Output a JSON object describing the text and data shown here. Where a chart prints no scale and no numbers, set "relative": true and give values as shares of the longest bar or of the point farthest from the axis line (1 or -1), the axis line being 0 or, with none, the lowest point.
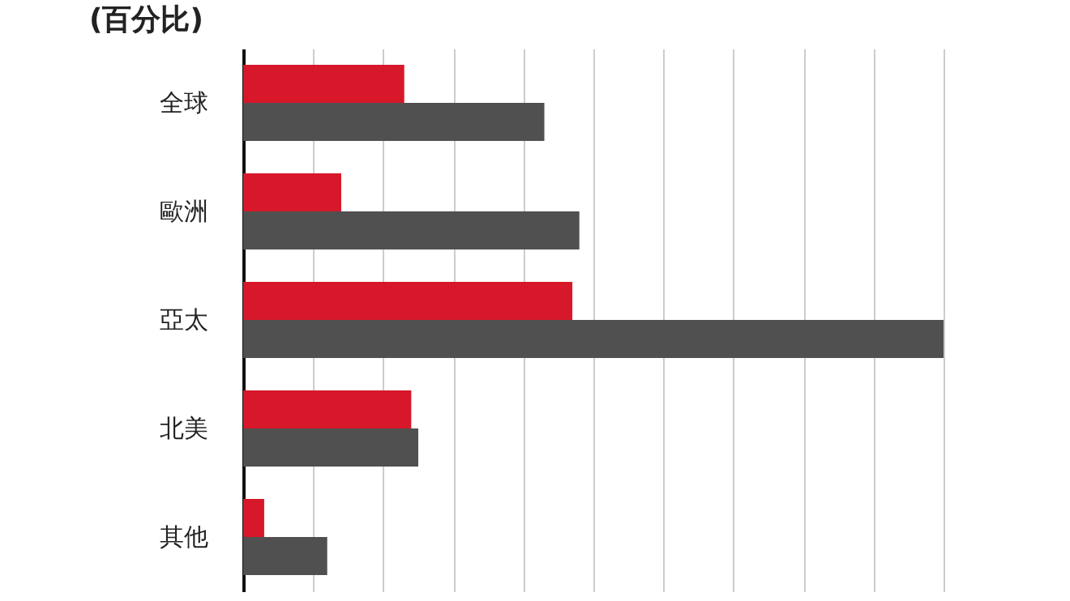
{
  "chart_data": {
    "type": "bar",
    "orientation": "horizontal",
    "relative": true,
    "title": "(百分比)",
    "categories": [
      "全球",
      "歐洲",
      "亞太",
      "北美",
      "其他"
    ],
    "grid": "x",
    "series": [
      {
        "color": "#d7182a",
        "values": [
          0.23,
          0.14,
          0.47,
          0.24,
          0.03
        ]
      },
      {
        "color": "#505050",
        "values": [
          0.43,
          0.48,
          1,
          0.25,
          0.12
        ]
      }
    ]
  }
}
